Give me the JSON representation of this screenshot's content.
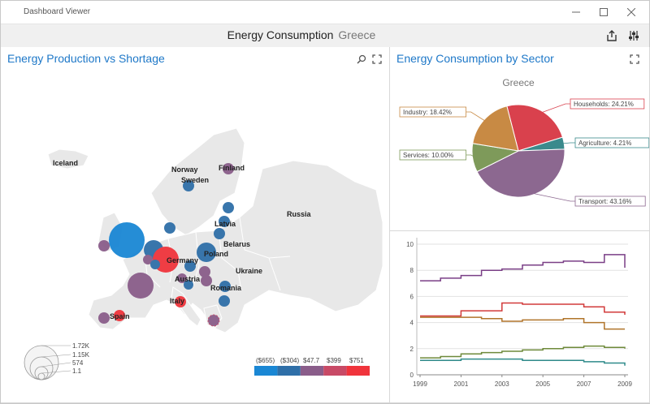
{
  "window": {
    "title": "Dashboard Viewer"
  },
  "header": {
    "title": "Energy Consumption",
    "subtitle": "Greece"
  },
  "map_panel": {
    "title": "Energy Production vs Shortage",
    "labels": [
      "Iceland",
      "Norway",
      "Sweden",
      "Finland",
      "Russia",
      "Latvia",
      "Belarus",
      "Ukraine",
      "Romania",
      "Austria",
      "Italy",
      "Spain",
      "Germany",
      "Poland"
    ],
    "size_legend": [
      "1.72K",
      "1.15K",
      "574",
      "1.1"
    ],
    "color_legend": [
      "($655)",
      "($304)",
      "$47.7",
      "$399",
      "$751"
    ],
    "color_legend_colors": [
      "#1a87d4",
      "#2f6fa8",
      "#8a5d8a",
      "#c84a66",
      "#f0343c"
    ]
  },
  "pie_panel": {
    "title": "Energy Consumption by Sector",
    "chart_title": "Greece"
  },
  "chart_data": [
    {
      "type": "pie",
      "title": "Greece",
      "slices": [
        {
          "label": "Households: 24.21%",
          "value": 24.21,
          "color": "#d9414d"
        },
        {
          "label": "Agriculture: 4.21%",
          "value": 4.21,
          "color": "#3a8a8c"
        },
        {
          "label": "Transport: 43.16%",
          "value": 43.16,
          "color": "#8c6890"
        },
        {
          "label": "Services: 10.00%",
          "value": 10.0,
          "color": "#7e9a5a"
        },
        {
          "label": "Industry: 18.42%",
          "value": 18.42,
          "color": "#c88a44"
        }
      ]
    },
    {
      "type": "line",
      "x": [
        1999,
        2000,
        2001,
        2002,
        2003,
        2004,
        2005,
        2006,
        2007,
        2008,
        2009
      ],
      "xticks": [
        "1999",
        "2001",
        "2003",
        "2005",
        "2007",
        "2009"
      ],
      "yticks": [
        "0",
        "2",
        "4",
        "6",
        "8",
        "10"
      ],
      "ylim": [
        0,
        10
      ],
      "series": [
        {
          "color": "#7a3f86",
          "values": [
            7.2,
            7.4,
            7.6,
            8.0,
            8.1,
            8.4,
            8.6,
            8.7,
            8.6,
            9.2,
            8.2
          ]
        },
        {
          "color": "#d23a3a",
          "values": [
            4.5,
            4.5,
            4.9,
            4.9,
            5.5,
            5.4,
            5.4,
            5.4,
            5.2,
            4.8,
            4.6
          ]
        },
        {
          "color": "#b0742a",
          "values": [
            4.4,
            4.4,
            4.4,
            4.3,
            4.1,
            4.2,
            4.2,
            4.3,
            4.0,
            3.5,
            3.5
          ]
        },
        {
          "color": "#6e8a3a",
          "values": [
            1.3,
            1.4,
            1.6,
            1.7,
            1.8,
            1.9,
            2.0,
            2.1,
            2.2,
            2.1,
            2.0
          ]
        },
        {
          "color": "#2e8a8a",
          "values": [
            1.1,
            1.1,
            1.2,
            1.2,
            1.2,
            1.1,
            1.1,
            1.1,
            1.0,
            0.9,
            0.7
          ]
        }
      ]
    }
  ]
}
